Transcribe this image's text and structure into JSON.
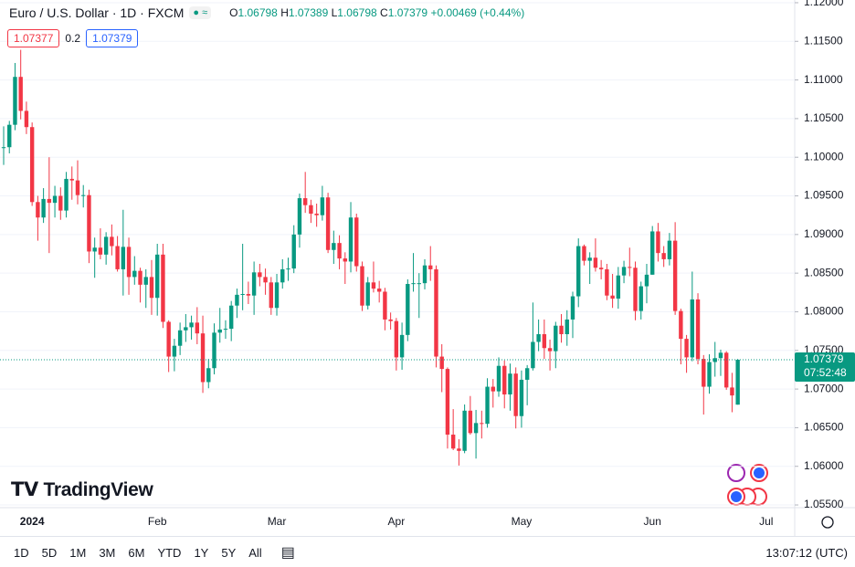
{
  "header": {
    "symbol": "Euro / U.S. Dollar · 1D · FXCM",
    "o": "O",
    "h": "H",
    "l": "L",
    "c": "C",
    "change": "+0.00469",
    "change_pct": "(+0.44%)",
    "bid": "1.07377",
    "spread": "0.2",
    "ask": "1.07379",
    "countdown": "07:52:48"
  },
  "logo": "TradingView",
  "toolbar": {
    "ranges": [
      "1D",
      "5D",
      "1M",
      "3M",
      "6M",
      "YTD",
      "1Y",
      "5Y",
      "All"
    ],
    "clock": "13:07:12 (UTC)"
  },
  "chart_data": {
    "type": "candlestick",
    "up_color": "#089981",
    "down_color": "#f23645",
    "grid": true,
    "ylim": [
      1.05465,
      1.12035
    ],
    "yticks": [
      {
        "value": 1.055,
        "label": "1.05500"
      },
      {
        "value": 1.06,
        "label": "1.06000"
      },
      {
        "value": 1.065,
        "label": "1.06500"
      },
      {
        "value": 1.07,
        "label": "1.07000"
      },
      {
        "value": 1.075,
        "label": "1.07500"
      },
      {
        "value": 1.08,
        "label": "1.08000"
      },
      {
        "value": 1.085,
        "label": "1.08500"
      },
      {
        "value": 1.09,
        "label": "1.09000"
      },
      {
        "value": 1.095,
        "label": "1.09500"
      },
      {
        "value": 1.1,
        "label": "1.10000"
      },
      {
        "value": 1.105,
        "label": "1.10500"
      },
      {
        "value": 1.11,
        "label": "1.11000"
      },
      {
        "value": 1.115,
        "label": "1.11500"
      },
      {
        "value": 1.12,
        "label": "1.12000"
      }
    ],
    "categories": [
      null,
      null,
      null,
      null,
      null,
      "2024",
      null,
      null,
      null,
      null,
      null,
      null,
      null,
      null,
      null,
      null,
      null,
      null,
      null,
      null,
      null,
      null,
      null,
      null,
      null,
      null,
      null,
      "Feb",
      null,
      null,
      null,
      null,
      null,
      null,
      null,
      null,
      null,
      null,
      null,
      null,
      null,
      null,
      null,
      null,
      null,
      null,
      null,
      null,
      "Mar",
      null,
      null,
      null,
      null,
      null,
      null,
      null,
      null,
      null,
      null,
      null,
      null,
      null,
      null,
      null,
      null,
      null,
      null,
      null,
      null,
      "Apr",
      null,
      null,
      null,
      null,
      null,
      null,
      null,
      null,
      null,
      null,
      null,
      null,
      null,
      null,
      null,
      null,
      null,
      null,
      null,
      null,
      null,
      "May",
      null,
      null,
      null,
      null,
      null,
      null,
      null,
      null,
      null,
      null,
      null,
      null,
      null,
      null,
      null,
      null,
      null,
      null,
      null,
      null,
      null,
      null,
      "Jun",
      null,
      null,
      null,
      null,
      null,
      null,
      null,
      null,
      null,
      null,
      null,
      null,
      null,
      null,
      null,
      null,
      null,
      null,
      null,
      "Jul"
    ],
    "open": [
      1.1012,
      1.1013,
      1.1042,
      1.1104,
      1.106,
      1.1039,
      1.0942,
      1.0922,
      1.0946,
      1.0941,
      1.095,
      1.0931,
      1.0972,
      1.097,
      1.0951,
      1.0951,
      1.0878,
      1.0883,
      1.0874,
      1.0897,
      1.0885,
      1.0855,
      1.0884,
      1.0845,
      1.0853,
      1.0835,
      1.0845,
      1.0818,
      1.0874,
      1.0787,
      1.0742,
      1.0756,
      1.0776,
      1.078,
      1.0786,
      1.0772,
      1.0709,
      1.0727,
      1.0773,
      1.0777,
      1.0778,
      1.0808,
      1.0822,
      1.0823,
      1.0821,
      1.0851,
      1.0845,
      1.0838,
      1.0805,
      1.0838,
      1.0855,
      1.0856,
      1.09,
      1.0947,
      1.0938,
      1.0927,
      1.0925,
      1.0948,
      1.088,
      1.0889,
      1.0869,
      1.0865,
      1.0922,
      1.0859,
      1.0808,
      1.0838,
      1.083,
      1.0826,
      1.079,
      1.0788,
      1.0741,
      1.077,
      1.0836,
      1.0837,
      1.0837,
      1.086,
      1.0855,
      1.0742,
      1.0726,
      1.0641,
      1.0623,
      1.062,
      1.0672,
      1.0643,
      1.0656,
      1.0655,
      1.0703,
      1.0697,
      1.073,
      1.0693,
      1.072,
      1.0665,
      1.0712,
      1.0727,
      1.0761,
      1.0771,
      1.0753,
      1.0749,
      1.0782,
      1.0771,
      1.079,
      1.082,
      1.0885,
      1.0866,
      1.087,
      1.0857,
      1.0855,
      1.0821,
      1.0817,
      1.0847,
      1.0858,
      1.0857,
      1.0801,
      1.0833,
      1.0848,
      1.0904,
      1.0876,
      1.0868,
      1.0892,
      1.0801,
      1.0765,
      1.0741,
      1.0816,
      1.0739,
      1.0703,
      1.0735,
      1.074,
      1.0747,
      1.0702,
      1.06798,
      null,
      null,
      null,
      null,
      null
    ],
    "high": [
      1.104,
      1.1047,
      1.1122,
      1.1139,
      1.1072,
      1.1045,
      1.095,
      1.096,
      1.1,
      1.0963,
      1.0961,
      1.0981,
      1.0988,
      1.0996,
      1.0964,
      1.0958,
      1.0896,
      1.0908,
      1.0903,
      1.0913,
      1.0898,
      1.0932,
      1.0896,
      1.0872,
      1.0857,
      1.0855,
      1.0867,
      1.0888,
      1.0888,
      1.0789,
      1.0765,
      1.0786,
      1.0797,
      1.0795,
      1.0806,
      1.0795,
      1.0739,
      1.0785,
      1.0805,
      1.0789,
      1.0814,
      1.083,
      1.0888,
      1.0839,
      1.0865,
      1.0862,
      1.0856,
      1.0845,
      1.0849,
      1.0868,
      1.087,
      1.0912,
      1.0953,
      1.0981,
      1.0945,
      1.094,
      1.0963,
      1.0954,
      1.0905,
      1.0899,
      1.0877,
      1.0942,
      1.0927,
      1.0865,
      1.0845,
      1.0865,
      1.084,
      1.0831,
      1.0799,
      1.0792,
      1.0786,
      1.0842,
      1.0876,
      1.085,
      1.0868,
      1.0885,
      1.086,
      1.0758,
      1.0728,
      1.0674,
      1.0635,
      1.068,
      1.0691,
      1.0673,
      1.0672,
      1.0714,
      1.0713,
      1.0741,
      1.0737,
      1.0733,
      1.0728,
      1.0724,
      1.0731,
      1.0812,
      1.079,
      1.079,
      1.0764,
      1.0787,
      1.0797,
      1.0802,
      1.0826,
      1.0895,
      1.0887,
      1.0877,
      1.0895,
      1.0867,
      1.0862,
      1.0849,
      1.0858,
      1.0866,
      1.0883,
      1.0865,
      1.0839,
      1.0862,
      1.0911,
      1.0915,
      1.0885,
      1.0902,
      1.0916,
      1.0804,
      1.077,
      1.0852,
      1.0824,
      1.0744,
      1.0745,
      1.0761,
      1.0751,
      1.0749,
      1.0721,
      1.07389,
      null,
      null,
      null,
      null,
      null
    ],
    "low": [
      1.099,
      1.1005,
      1.1035,
      1.1049,
      1.103,
      1.0937,
      1.0892,
      1.0915,
      1.0876,
      1.0922,
      1.0919,
      1.0922,
      1.0945,
      1.0939,
      1.0935,
      1.0863,
      1.0844,
      1.0868,
      1.0861,
      1.0873,
      1.0852,
      1.0821,
      1.0822,
      1.0835,
      1.0812,
      1.0805,
      1.0796,
      1.0795,
      1.0779,
      1.0722,
      1.0723,
      1.0744,
      1.0761,
      1.0764,
      1.0758,
      1.0695,
      1.0701,
      1.0719,
      1.076,
      1.0765,
      1.0762,
      1.0792,
      1.0802,
      1.081,
      1.0796,
      1.0833,
      1.0822,
      1.0796,
      1.0795,
      1.083,
      1.084,
      1.085,
      1.0883,
      1.0928,
      1.0915,
      1.091,
      1.0918,
      1.0876,
      1.0862,
      1.0855,
      1.0836,
      1.0851,
      1.0852,
      1.0801,
      1.0803,
      1.0825,
      1.0812,
      1.0776,
      1.0777,
      1.0724,
      1.0725,
      1.0762,
      1.0826,
      1.0792,
      1.0829,
      1.084,
      1.0728,
      1.0696,
      1.0623,
      1.0621,
      1.0601,
      1.0617,
      1.0641,
      1.061,
      1.0636,
      1.065,
      1.0676,
      1.069,
      1.0675,
      1.0672,
      1.0649,
      1.065,
      1.0679,
      1.0724,
      1.0749,
      1.0739,
      1.0724,
      1.0727,
      1.076,
      1.0756,
      1.0766,
      1.0806,
      1.086,
      1.0836,
      1.0852,
      1.0842,
      1.0815,
      1.0805,
      1.0804,
      1.0837,
      1.0846,
      1.0789,
      1.079,
      1.0811,
      1.0848,
      1.0865,
      1.0858,
      1.086,
      1.0796,
      1.0732,
      1.0721,
      1.0736,
      1.0732,
      1.0667,
      1.0694,
      1.0716,
      1.0717,
      1.0699,
      1.067,
      1.06798,
      null,
      null,
      null,
      null,
      null
    ],
    "close": [
      1.1013,
      1.1042,
      1.1104,
      1.106,
      1.1039,
      1.0942,
      1.0922,
      1.0946,
      1.0941,
      1.095,
      1.0931,
      1.0972,
      1.097,
      1.0951,
      1.0951,
      1.0878,
      1.0883,
      1.0874,
      1.0897,
      1.0885,
      1.0855,
      1.0884,
      1.0845,
      1.0853,
      1.0835,
      1.0845,
      1.0818,
      1.0874,
      1.0787,
      1.0742,
      1.0756,
      1.0776,
      1.078,
      1.0786,
      1.0772,
      1.0709,
      1.0727,
      1.0773,
      1.0777,
      1.0778,
      1.0808,
      1.0822,
      1.0823,
      1.0821,
      1.0851,
      1.0845,
      1.0838,
      1.0805,
      1.0838,
      1.0855,
      1.0856,
      1.09,
      1.0947,
      1.0938,
      1.0927,
      1.0925,
      1.0948,
      1.088,
      1.0889,
      1.0869,
      1.0865,
      1.0922,
      1.0859,
      1.0808,
      1.0838,
      1.083,
      1.0826,
      1.079,
      1.0788,
      1.0741,
      1.077,
      1.0836,
      1.0837,
      1.0837,
      1.086,
      1.0855,
      1.0742,
      1.0726,
      1.0641,
      1.0623,
      1.062,
      1.0672,
      1.0643,
      1.0656,
      1.0655,
      1.0703,
      1.0697,
      1.073,
      1.0693,
      1.072,
      1.0665,
      1.0712,
      1.0727,
      1.0761,
      1.0771,
      1.0753,
      1.0749,
      1.0782,
      1.0771,
      1.079,
      1.082,
      1.0885,
      1.0866,
      1.087,
      1.0857,
      1.0855,
      1.0821,
      1.0817,
      1.0847,
      1.0858,
      1.0857,
      1.0801,
      1.0833,
      1.0848,
      1.0904,
      1.0876,
      1.0868,
      1.0892,
      1.0801,
      1.0765,
      1.0741,
      1.0816,
      1.0739,
      1.0703,
      1.0735,
      1.074,
      1.0747,
      1.0702,
      1.06917,
      1.07379,
      null,
      null,
      null,
      null,
      null
    ]
  }
}
